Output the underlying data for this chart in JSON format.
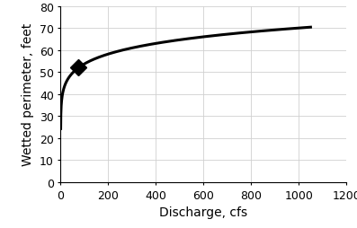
{
  "title": "",
  "xlabel": "Discharge, cfs",
  "ylabel": "Wetted perimeter, feet",
  "xlim": [
    0,
    1200
  ],
  "ylim": [
    0,
    80
  ],
  "xticks": [
    0,
    200,
    400,
    600,
    800,
    1000,
    1200
  ],
  "yticks": [
    0,
    10,
    20,
    30,
    40,
    50,
    60,
    70,
    80
  ],
  "curve_color": "#000000",
  "curve_linewidth": 2.2,
  "marker_x": 75,
  "marker_y": 52,
  "marker_style": "D",
  "marker_size": 9,
  "marker_color": "#000000",
  "background_color": "#ffffff",
  "grid_color": "#d0d0d0",
  "xlabel_fontsize": 10,
  "ylabel_fontsize": 10,
  "tick_fontsize": 9
}
